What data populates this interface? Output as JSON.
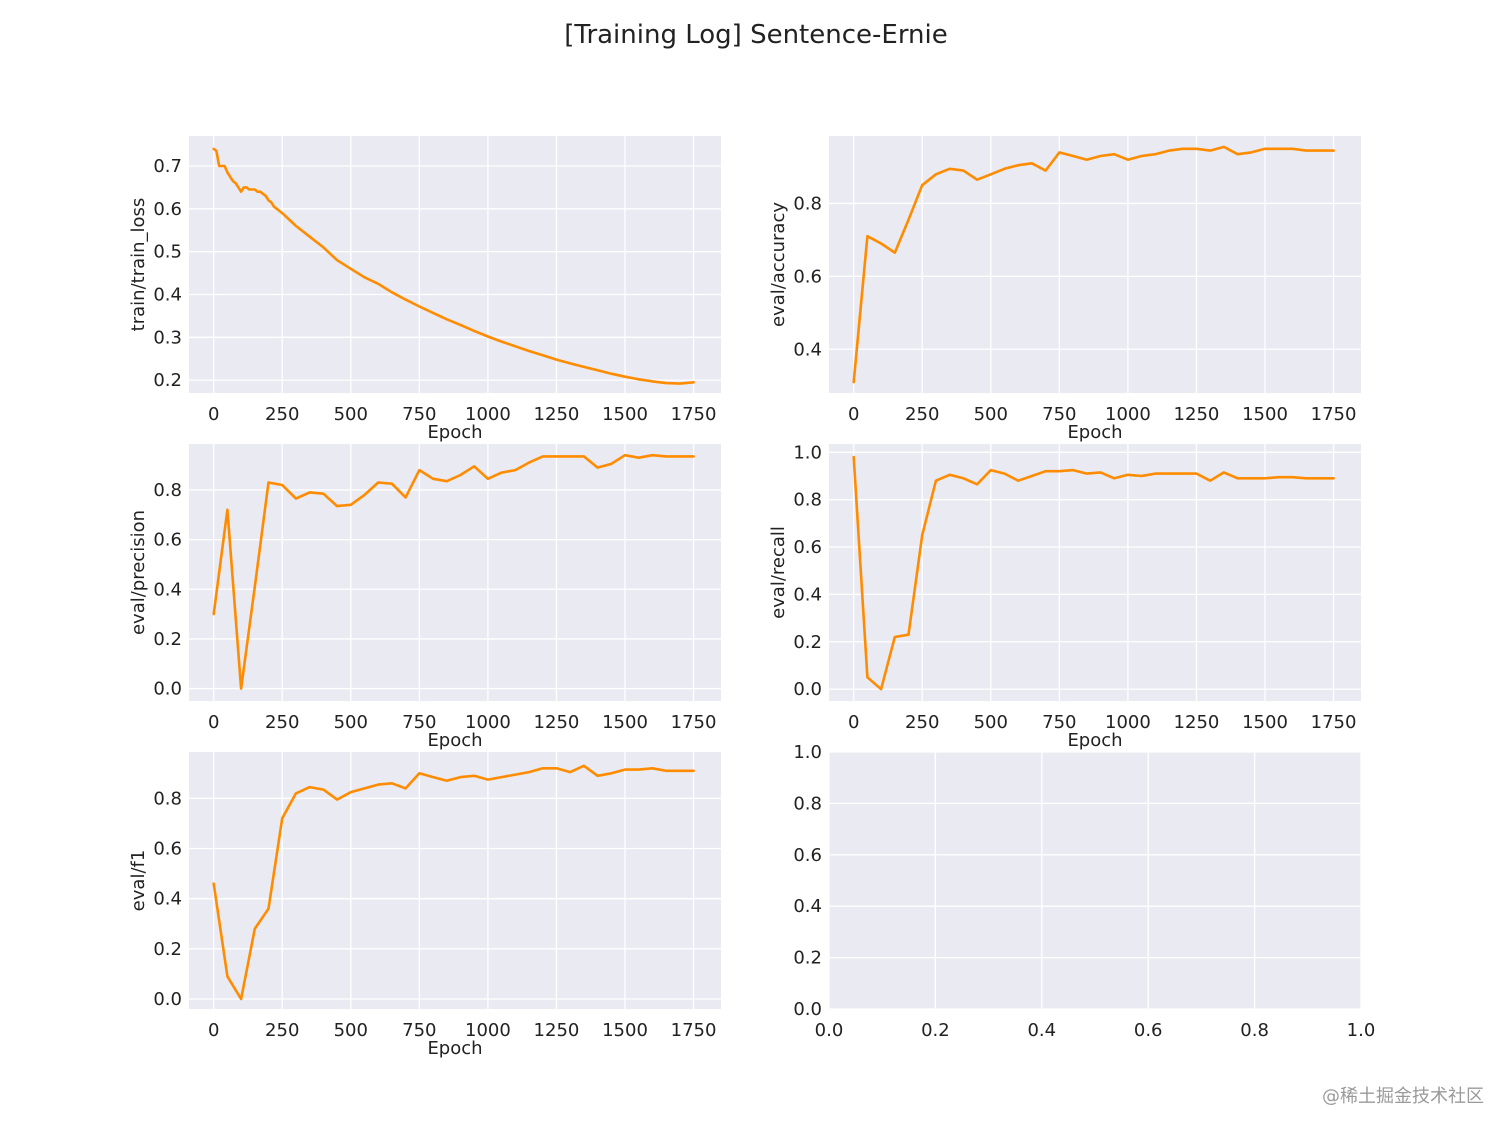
{
  "figure": {
    "title": "[Training Log] Sentence-Ernie",
    "watermark": "@稀土掘金技术社区"
  },
  "colors": {
    "line": "#ff8c00",
    "panel_bg": "#eaeaf2",
    "grid": "#ffffff",
    "text": "#222222"
  },
  "chart_data": [
    {
      "type": "line",
      "xlabel": "Epoch",
      "ylabel": "train/train_loss",
      "xlim": [
        -90,
        1850
      ],
      "ylim": [
        0.17,
        0.77
      ],
      "xticks": [
        0,
        250,
        500,
        750,
        1000,
        1250,
        1500,
        1750
      ],
      "yticks": [
        0.2,
        0.3,
        0.4,
        0.5,
        0.6,
        0.7
      ],
      "x": [
        0,
        10,
        20,
        30,
        40,
        50,
        60,
        70,
        80,
        90,
        100,
        110,
        120,
        130,
        140,
        150,
        160,
        170,
        180,
        190,
        200,
        210,
        220,
        230,
        240,
        250,
        275,
        300,
        350,
        400,
        450,
        500,
        550,
        600,
        650,
        700,
        750,
        800,
        850,
        900,
        950,
        1000,
        1050,
        1100,
        1150,
        1200,
        1250,
        1300,
        1350,
        1400,
        1450,
        1500,
        1550,
        1600,
        1650,
        1700,
        1750
      ],
      "y": [
        0.74,
        0.735,
        0.7,
        0.7,
        0.7,
        0.685,
        0.675,
        0.665,
        0.66,
        0.65,
        0.64,
        0.65,
        0.65,
        0.645,
        0.645,
        0.645,
        0.64,
        0.64,
        0.635,
        0.63,
        0.62,
        0.615,
        0.605,
        0.6,
        0.595,
        0.59,
        0.575,
        0.56,
        0.535,
        0.51,
        0.48,
        0.46,
        0.44,
        0.425,
        0.405,
        0.388,
        0.372,
        0.357,
        0.342,
        0.329,
        0.315,
        0.302,
        0.29,
        0.279,
        0.268,
        0.258,
        0.248,
        0.239,
        0.231,
        0.223,
        0.215,
        0.208,
        0.202,
        0.197,
        0.193,
        0.192,
        0.195
      ]
    },
    {
      "type": "line",
      "xlabel": "Epoch",
      "ylabel": "eval/accuracy",
      "xlim": [
        -90,
        1850
      ],
      "ylim": [
        0.28,
        0.985
      ],
      "xticks": [
        0,
        250,
        500,
        750,
        1000,
        1250,
        1500,
        1750
      ],
      "yticks": [
        0.4,
        0.6,
        0.8
      ],
      "x": [
        0,
        50,
        100,
        150,
        200,
        250,
        300,
        350,
        400,
        450,
        500,
        550,
        600,
        650,
        700,
        750,
        800,
        850,
        900,
        950,
        1000,
        1050,
        1100,
        1150,
        1200,
        1250,
        1300,
        1350,
        1400,
        1450,
        1500,
        1550,
        1600,
        1650,
        1700,
        1750
      ],
      "y": [
        0.31,
        0.71,
        0.69,
        0.665,
        0.755,
        0.85,
        0.88,
        0.895,
        0.89,
        0.865,
        0.88,
        0.895,
        0.905,
        0.91,
        0.89,
        0.94,
        0.93,
        0.92,
        0.93,
        0.935,
        0.92,
        0.93,
        0.935,
        0.945,
        0.95,
        0.95,
        0.945,
        0.955,
        0.935,
        0.94,
        0.95,
        0.95,
        0.95,
        0.945,
        0.945,
        0.945
      ]
    },
    {
      "type": "line",
      "xlabel": "Epoch",
      "ylabel": "eval/precision",
      "xlim": [
        -90,
        1850
      ],
      "ylim": [
        -0.05,
        0.985
      ],
      "xticks": [
        0,
        250,
        500,
        750,
        1000,
        1250,
        1500,
        1750
      ],
      "yticks": [
        0.0,
        0.2,
        0.4,
        0.6,
        0.8
      ],
      "x": [
        0,
        50,
        100,
        150,
        200,
        250,
        300,
        350,
        400,
        450,
        500,
        550,
        600,
        650,
        700,
        750,
        800,
        850,
        900,
        950,
        1000,
        1050,
        1100,
        1150,
        1200,
        1250,
        1300,
        1350,
        1400,
        1450,
        1500,
        1550,
        1600,
        1650,
        1700,
        1750
      ],
      "y": [
        0.3,
        0.72,
        0.0,
        0.41,
        0.83,
        0.82,
        0.765,
        0.79,
        0.785,
        0.735,
        0.74,
        0.78,
        0.83,
        0.825,
        0.77,
        0.88,
        0.845,
        0.835,
        0.86,
        0.895,
        0.845,
        0.87,
        0.88,
        0.91,
        0.935,
        0.935,
        0.935,
        0.935,
        0.89,
        0.905,
        0.94,
        0.93,
        0.94,
        0.935,
        0.935,
        0.935
      ]
    },
    {
      "type": "line",
      "xlabel": "Epoch",
      "ylabel": "eval/recall",
      "xlim": [
        -90,
        1850
      ],
      "ylim": [
        -0.05,
        1.035
      ],
      "xticks": [
        0,
        250,
        500,
        750,
        1000,
        1250,
        1500,
        1750
      ],
      "yticks": [
        0.0,
        0.2,
        0.4,
        0.6,
        0.8,
        1.0
      ],
      "x": [
        0,
        50,
        100,
        150,
        200,
        250,
        300,
        350,
        400,
        450,
        500,
        550,
        600,
        650,
        700,
        750,
        800,
        850,
        900,
        950,
        1000,
        1050,
        1100,
        1150,
        1200,
        1250,
        1300,
        1350,
        1400,
        1450,
        1500,
        1550,
        1600,
        1650,
        1700,
        1750
      ],
      "y": [
        0.98,
        0.05,
        0.0,
        0.22,
        0.23,
        0.65,
        0.88,
        0.905,
        0.89,
        0.865,
        0.925,
        0.91,
        0.88,
        0.9,
        0.92,
        0.92,
        0.925,
        0.91,
        0.915,
        0.89,
        0.905,
        0.9,
        0.91,
        0.91,
        0.91,
        0.91,
        0.88,
        0.915,
        0.89,
        0.89,
        0.89,
        0.895,
        0.895,
        0.89,
        0.89,
        0.89
      ]
    },
    {
      "type": "line",
      "xlabel": "Epoch",
      "ylabel": "eval/f1",
      "xlim": [
        -90,
        1850
      ],
      "ylim": [
        -0.04,
        0.985
      ],
      "xticks": [
        0,
        250,
        500,
        750,
        1000,
        1250,
        1500,
        1750
      ],
      "yticks": [
        0.0,
        0.2,
        0.4,
        0.6,
        0.8
      ],
      "x": [
        0,
        50,
        100,
        150,
        200,
        250,
        300,
        350,
        400,
        450,
        500,
        550,
        600,
        650,
        700,
        750,
        800,
        850,
        900,
        950,
        1000,
        1050,
        1100,
        1150,
        1200,
        1250,
        1300,
        1350,
        1400,
        1450,
        1500,
        1550,
        1600,
        1650,
        1700,
        1750
      ],
      "y": [
        0.46,
        0.09,
        0.0,
        0.28,
        0.36,
        0.72,
        0.82,
        0.845,
        0.835,
        0.795,
        0.825,
        0.84,
        0.855,
        0.86,
        0.84,
        0.9,
        0.885,
        0.87,
        0.885,
        0.89,
        0.875,
        0.885,
        0.895,
        0.905,
        0.92,
        0.92,
        0.905,
        0.93,
        0.89,
        0.9,
        0.915,
        0.915,
        0.92,
        0.91,
        0.91,
        0.91
      ]
    },
    {
      "type": "line",
      "xlabel": "",
      "ylabel": "",
      "xlim": [
        0.0,
        1.0
      ],
      "ylim": [
        0.0,
        1.0
      ],
      "xticks": [
        0.0,
        0.2,
        0.4,
        0.6,
        0.8,
        1.0
      ],
      "yticks": [
        0.0,
        0.2,
        0.4,
        0.6,
        0.8,
        1.0
      ],
      "x": [],
      "y": []
    }
  ]
}
